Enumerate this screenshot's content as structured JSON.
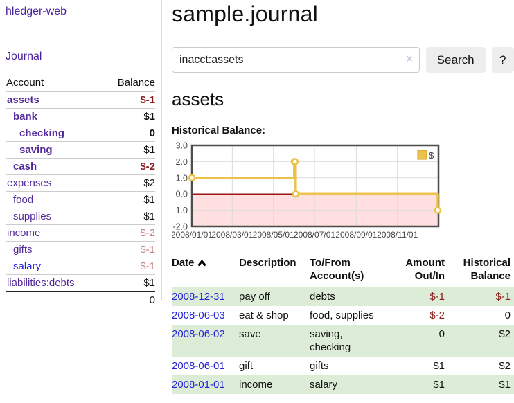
{
  "app": {
    "title": "hledger-web"
  },
  "sidebar": {
    "journal_link": "Journal",
    "table": {
      "headers": {
        "account": "Account",
        "balance": "Balance"
      },
      "rows": [
        {
          "account": "assets",
          "level": 1,
          "balance": "$-1",
          "emphasis": true,
          "account_color": "purple",
          "balance_color": "neg"
        },
        {
          "account": "bank",
          "level": 2,
          "balance": "$1",
          "emphasis": true,
          "account_color": "purple",
          "balance_color": "black"
        },
        {
          "account": "checking",
          "level": 3,
          "balance": "0",
          "emphasis": true,
          "account_color": "purple",
          "balance_color": "black"
        },
        {
          "account": "saving",
          "level": 3,
          "balance": "$1",
          "emphasis": true,
          "account_color": "purple",
          "balance_color": "black"
        },
        {
          "account": "cash",
          "level": 2,
          "balance": "$-2",
          "emphasis": true,
          "account_color": "purple",
          "balance_color": "neg"
        },
        {
          "account": "expenses",
          "level": 1,
          "balance": "$2",
          "emphasis": false,
          "account_color": "purple",
          "balance_color": "black"
        },
        {
          "account": "food",
          "level": 2,
          "balance": "$1",
          "emphasis": false,
          "account_color": "purple",
          "balance_color": "black"
        },
        {
          "account": "supplies",
          "level": 2,
          "balance": "$1",
          "emphasis": false,
          "account_color": "purple",
          "balance_color": "black"
        },
        {
          "account": "income",
          "level": 1,
          "balance": "$-2",
          "emphasis": false,
          "account_color": "purple",
          "balance_color": "negdim"
        },
        {
          "account": "gifts",
          "level": 2,
          "balance": "$-1",
          "emphasis": false,
          "account_color": "purple",
          "balance_color": "negdim"
        },
        {
          "account": "salary",
          "level": 2,
          "balance": "$-1",
          "emphasis": false,
          "account_color": "blue",
          "balance_color": "negdim"
        },
        {
          "account": "liabilities:debts",
          "level": 1,
          "balance": "$1",
          "emphasis": false,
          "account_color": "purple",
          "balance_color": "black"
        }
      ],
      "total": "0"
    }
  },
  "header": {
    "title": "sample.journal"
  },
  "search": {
    "value": "inacct:assets",
    "clear_icon": "×",
    "button_label": "Search",
    "help_label": "?"
  },
  "account_page": {
    "heading": "assets",
    "section_label": "Historical Balance:"
  },
  "chart_data": {
    "type": "line",
    "step": true,
    "title": "Historical Balance",
    "series": [
      {
        "name": "$",
        "color": "#ecc24b",
        "points": [
          [
            "2008-01-01",
            1
          ],
          [
            "2008-06-01",
            2
          ],
          [
            "2008-06-02",
            2
          ],
          [
            "2008-06-03",
            0
          ],
          [
            "2008-12-31",
            -1
          ]
        ]
      }
    ],
    "xrange": [
      "2008-01-01",
      "2009-01-01"
    ],
    "ylim": [
      -2,
      3
    ],
    "yticks": [
      {
        "value": 3,
        "label": "3.0"
      },
      {
        "value": 2,
        "label": "2.0"
      },
      {
        "value": 1,
        "label": "1.0"
      },
      {
        "value": 0,
        "label": "0.0"
      },
      {
        "value": -1,
        "label": "-1.0"
      },
      {
        "value": -2,
        "label": "-2.0"
      }
    ],
    "xticks": [
      {
        "date": "2008-01-01",
        "label": "2008/01/01"
      },
      {
        "date": "2008-03-01",
        "label": "2008/03/01"
      },
      {
        "date": "2008-05-01",
        "label": "2008/05/01"
      },
      {
        "date": "2008-07-01",
        "label": "2008/07/01"
      },
      {
        "date": "2008-09-01",
        "label": "2008/09/01"
      },
      {
        "date": "2008-11-01",
        "label": "2008/11/01"
      }
    ],
    "grid": true,
    "negative_region_color": "#ffdfdf",
    "zero_line_color": "#a01414",
    "grid_color": "#dcdcdc",
    "border_color": "#4d4d4d",
    "legend": {
      "label": "$",
      "position": "top-right",
      "swatch_color": "#ecc24b",
      "swatch_border": "#c49a1f"
    }
  },
  "register": {
    "headers": {
      "date": "Date",
      "description": "Description",
      "accounts": "To/From Account(s)",
      "amount": "Amount Out/In",
      "balance": "Historical Balance"
    },
    "rows": [
      {
        "date": "2008-12-31",
        "description": "pay off",
        "accounts": "debts",
        "amount": "$-1",
        "amount_negative": true,
        "balance": "$-1",
        "balance_negative": true,
        "highlighted": true
      },
      {
        "date": "2008-06-03",
        "description": "eat & shop",
        "accounts": "food, supplies",
        "amount": "$-2",
        "amount_negative": true,
        "balance": "0",
        "balance_negative": false,
        "highlighted": false
      },
      {
        "date": "2008-06-02",
        "description": "save",
        "accounts": "saving, checking",
        "amount": "0",
        "amount_negative": false,
        "balance": "$2",
        "balance_negative": false,
        "highlighted": true
      },
      {
        "date": "2008-06-01",
        "description": "gift",
        "accounts": "gifts",
        "amount": "$1",
        "amount_negative": false,
        "balance": "$2",
        "balance_negative": false,
        "highlighted": false
      },
      {
        "date": "2008-01-01",
        "description": "income",
        "accounts": "salary",
        "amount": "$1",
        "amount_negative": false,
        "balance": "$1",
        "balance_negative": false,
        "highlighted": true
      }
    ]
  },
  "colors": {
    "link_purple": "#542a9b",
    "link_blue": "#2323d8",
    "negative": "#8b1c1c",
    "negative_dim": "#c5807f",
    "row_highlight": "#dcecd7",
    "button_bg": "#ededed"
  }
}
